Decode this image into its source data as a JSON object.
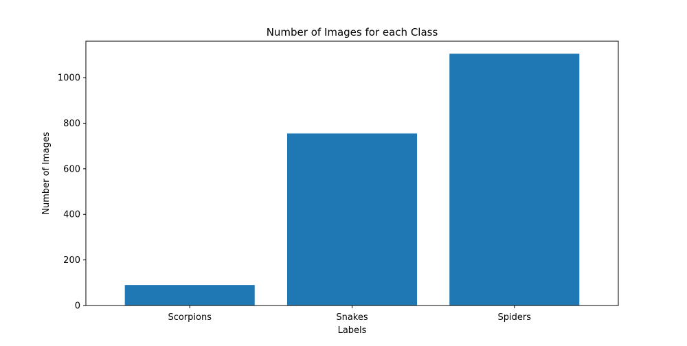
{
  "chart_data": {
    "type": "bar",
    "title": "Number of Images for each Class",
    "xlabel": "Labels",
    "ylabel": "Number of Images",
    "categories": [
      "Scorpions",
      "Snakes",
      "Spiders"
    ],
    "values": [
      90,
      755,
      1105
    ],
    "ylim": [
      0,
      1160
    ],
    "yticks": [
      0,
      200,
      400,
      600,
      800,
      1000
    ],
    "bar_color": "#1f77b4",
    "grid": false,
    "legend": "none"
  }
}
